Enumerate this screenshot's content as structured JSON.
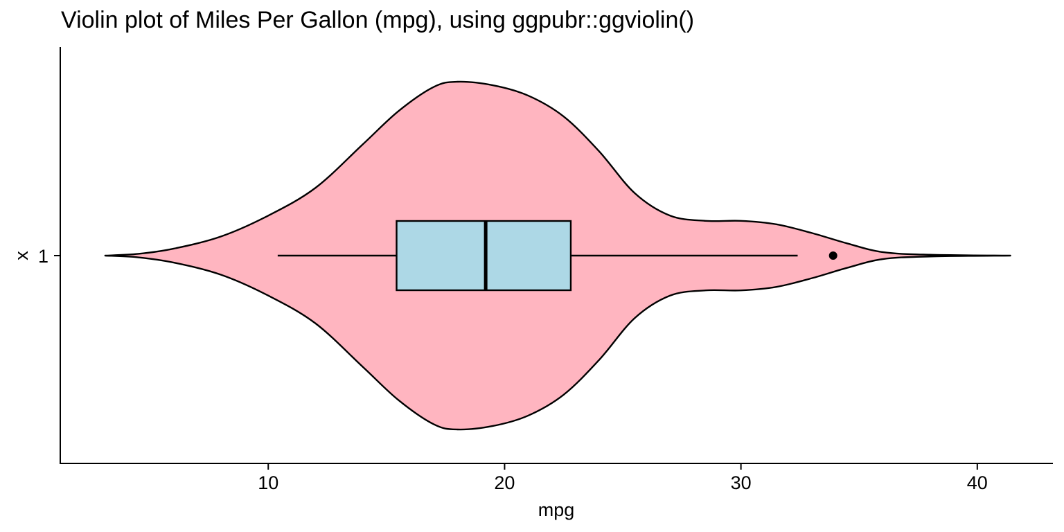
{
  "chart_data": {
    "type": "violin",
    "title": "Violin plot of Miles Per Gallon (mpg), using ggpubr::ggviolin()",
    "xlabel": "mpg",
    "ylabel": "x",
    "categories": [
      "1"
    ],
    "xlim": [
      1.2,
      43.2
    ],
    "xticks": [
      10,
      20,
      30,
      40
    ],
    "grid": false,
    "legend": "none",
    "violin": {
      "fill": "#ffb5c0",
      "stroke": "#000000",
      "range": [
        3.1,
        41.4
      ],
      "density": [
        [
          3.1,
          0.0
        ],
        [
          4.5,
          0.01
        ],
        [
          6.0,
          0.04
        ],
        [
          8.0,
          0.11
        ],
        [
          10.0,
          0.23
        ],
        [
          12.0,
          0.39
        ],
        [
          14.0,
          0.64
        ],
        [
          15.5,
          0.83
        ],
        [
          17.0,
          0.97
        ],
        [
          18.0,
          1.0
        ],
        [
          19.5,
          0.98
        ],
        [
          21.0,
          0.92
        ],
        [
          22.5,
          0.8
        ],
        [
          24.0,
          0.6
        ],
        [
          25.5,
          0.36
        ],
        [
          27.0,
          0.23
        ],
        [
          28.5,
          0.2
        ],
        [
          30.0,
          0.2
        ],
        [
          31.5,
          0.18
        ],
        [
          33.0,
          0.13
        ],
        [
          34.5,
          0.07
        ],
        [
          36.0,
          0.02
        ],
        [
          38.0,
          0.005
        ],
        [
          41.4,
          0.0
        ]
      ]
    },
    "boxplot": {
      "fill": "#add8e6",
      "stroke": "#000000",
      "min": 10.4,
      "q1": 15.43,
      "median": 19.2,
      "q3": 22.8,
      "max": 32.4,
      "outliers": [
        33.9
      ]
    }
  }
}
